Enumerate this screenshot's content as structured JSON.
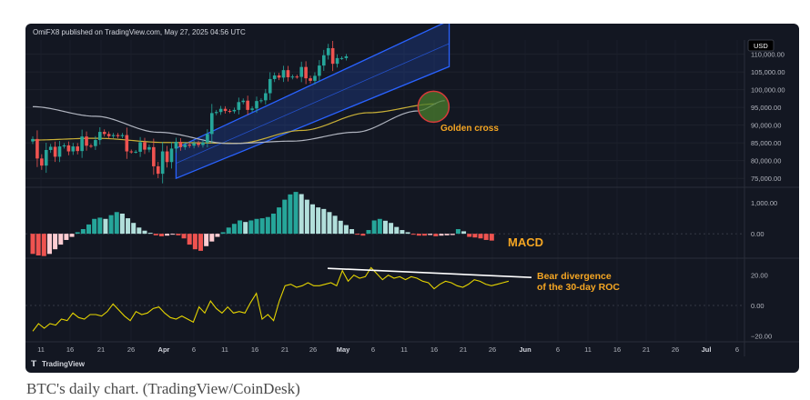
{
  "publisher_line": "OmiFX8 published on TradingView.com, May 27, 2025 04:56 UTC",
  "currency": "USD",
  "tv_logo_text": "TradingView",
  "caption": "BTC's daily chart. (TradingView/CoinDesk)",
  "annotations": {
    "golden_cross": "Golden cross",
    "macd": "MACD",
    "bear_div_1": "Bear divergence",
    "bear_div_2": "of the 30-day ROC"
  },
  "colors": {
    "up": "#26a69a",
    "down": "#ef5350",
    "macd_up_strong": "#26a69a",
    "macd_up_weak": "#b2dfdb",
    "macd_down_strong": "#ef5350",
    "macd_down_weak": "#ffcdd2",
    "channel": "#2962ff",
    "ma_short": "#c9b037",
    "ma_long": "#b0b4bf",
    "roc": "#e5d400",
    "annotation": "#f5a623"
  },
  "chart_data": [
    {
      "type": "candlestick",
      "panel": "price",
      "y_ticks": [
        "110,000.00",
        "105,000.00",
        "100,000.00",
        "95,000.00",
        "90,000.00",
        "85,000.00",
        "80,000.00",
        "75,000.00"
      ],
      "ylim": [
        73000,
        114000
      ],
      "x_ticks": [
        "11",
        "16",
        "21",
        "26",
        "Apr",
        "6",
        "11",
        "16",
        "21",
        "26",
        "May",
        "6",
        "11",
        "16",
        "21",
        "26",
        "Jun",
        "6",
        "11",
        "16",
        "21",
        "26",
        "Jul",
        "6"
      ],
      "start_date": "2025-03-08",
      "series": [
        {
          "name": "BTC",
          "close": [
            86100,
            80600,
            78600,
            83000,
            83900,
            81100,
            84000,
            84300,
            82600,
            84000,
            82700,
            86800,
            84200,
            84100,
            85800,
            88100,
            87500,
            86900,
            87200,
            86900,
            87200,
            82600,
            82500,
            82500,
            85200,
            83100,
            83800,
            78400,
            76300,
            82600,
            79600,
            83400,
            85300,
            83800,
            84500,
            84200,
            84900,
            84400,
            85100,
            87500,
            93400,
            93700,
            94600,
            94000,
            93900,
            94300,
            96500,
            96900,
            94300,
            94700,
            96800,
            97000,
            99000,
            103000,
            104000,
            103400,
            105500,
            103500,
            103700,
            103600,
            106400,
            103200,
            102500,
            103900,
            106800,
            109700,
            111700,
            107300,
            108900,
            108900,
            109400
          ]
        }
      ]
    },
    {
      "type": "line",
      "panel": "price",
      "series": [
        {
          "name": "MA short",
          "points": [
            [
              0,
              85800
            ],
            [
              14,
              86300
            ],
            [
              30,
              85100
            ],
            [
              46,
              84900
            ],
            [
              60,
              88500
            ],
            [
              75,
              93500
            ],
            [
              90,
              96000
            ]
          ]
        },
        {
          "name": "MA long",
          "points": [
            [
              0,
              95200
            ],
            [
              14,
              92500
            ],
            [
              28,
              88000
            ],
            [
              44,
              84800
            ],
            [
              58,
              85500
            ],
            [
              72,
              88000
            ],
            [
              86,
              94000
            ],
            [
              92,
              96900
            ]
          ]
        }
      ],
      "channel": {
        "lower": [
          [
            32,
            75000
          ],
          [
            93,
            106500
          ]
        ],
        "upper": [
          [
            32,
            83500
          ],
          [
            93,
            119500
          ]
        ]
      }
    },
    {
      "type": "bar",
      "panel": "macd",
      "y_ticks": [
        "1,000.00",
        "0.00"
      ],
      "ylim": [
        -700,
        1500
      ],
      "values": [
        -650,
        -700,
        -720,
        -650,
        -500,
        -350,
        -200,
        -100,
        50,
        150,
        300,
        480,
        520,
        480,
        600,
        700,
        650,
        500,
        350,
        200,
        100,
        30,
        -50,
        -80,
        -60,
        -30,
        -50,
        -150,
        -350,
        -500,
        -550,
        -400,
        -250,
        -100,
        50,
        200,
        320,
        430,
        380,
        430,
        480,
        500,
        540,
        650,
        850,
        1100,
        1270,
        1350,
        1280,
        1100,
        950,
        850,
        800,
        700,
        580,
        420,
        280,
        150,
        -20,
        -60,
        120,
        430,
        480,
        420,
        350,
        220,
        120,
        50,
        -30,
        -60,
        -60,
        -40,
        -80,
        -60,
        -50,
        -40,
        150,
        80,
        -100,
        -120,
        -150,
        -200,
        -220
      ]
    },
    {
      "type": "line",
      "panel": "roc",
      "y_ticks": [
        "20.00",
        "0.00",
        "−20.00"
      ],
      "ylim": [
        -24,
        30
      ],
      "series": [
        {
          "name": "30-day ROC",
          "values": [
            -17,
            -12,
            -15,
            -12,
            -13,
            -9,
            -10,
            -5,
            -8,
            -9,
            -6,
            -6,
            -7,
            -4,
            1,
            -3,
            -7,
            -10,
            -4,
            -6,
            -5,
            -2,
            -1,
            -5,
            -8,
            -9,
            -7,
            -9,
            -11,
            -1,
            -5,
            3,
            -2,
            -5,
            -1,
            -5,
            -4,
            -5,
            2,
            8,
            -9,
            -6,
            -10,
            3,
            13,
            14,
            12,
            13,
            15,
            13,
            13,
            14,
            15,
            13,
            23,
            16,
            20,
            18,
            19,
            25,
            21,
            17,
            20,
            18,
            19,
            17,
            19,
            18,
            16,
            15,
            11,
            14,
            16,
            15,
            13,
            12,
            14,
            17,
            16,
            14,
            13,
            14,
            15,
            16
          ]
        }
      ]
    }
  ]
}
